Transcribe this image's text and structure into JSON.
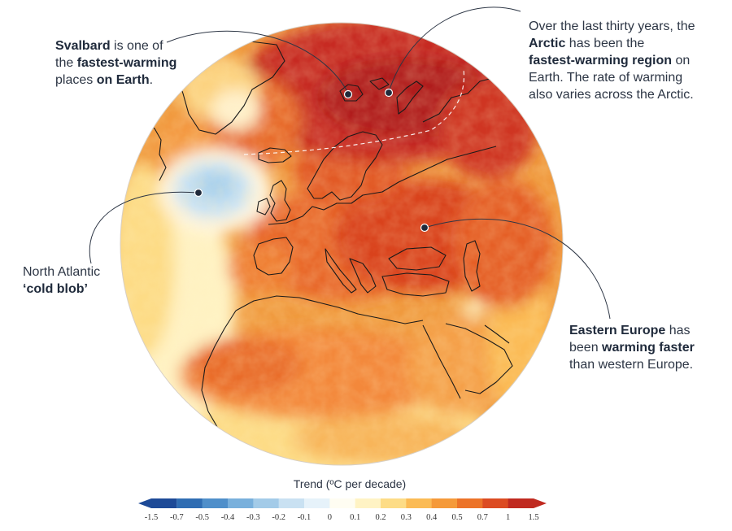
{
  "annotations": {
    "svalbard": {
      "lines": [
        [
          {
            "t": "Svalbard",
            "b": true
          },
          {
            "t": " is one of",
            "b": false
          }
        ],
        [
          {
            "t": "the ",
            "b": false
          },
          {
            "t": "fastest-warming",
            "b": true
          }
        ],
        [
          {
            "t": "places ",
            "b": false
          },
          {
            "t": "on Earth",
            "b": true
          },
          {
            "t": ".",
            "b": false
          }
        ]
      ]
    },
    "arctic": {
      "lines": [
        [
          {
            "t": "Over the last thirty years, the",
            "b": false
          }
        ],
        [
          {
            "t": "Arctic",
            "b": true
          },
          {
            "t": " has been the",
            "b": false
          }
        ],
        [
          {
            "t": "fastest-warming region",
            "b": true
          },
          {
            "t": " on",
            "b": false
          }
        ],
        [
          {
            "t": "Earth. The rate of warming",
            "b": false
          }
        ],
        [
          {
            "t": "also varies across the Arctic.",
            "b": false
          }
        ]
      ]
    },
    "cold_blob": {
      "lines": [
        [
          {
            "t": "North Atlantic",
            "b": false
          }
        ],
        [
          {
            "t": "‘cold blob’",
            "b": true
          }
        ]
      ]
    },
    "eastern_europe": {
      "lines": [
        [
          {
            "t": "Eastern Europe",
            "b": true
          },
          {
            "t": " has",
            "b": false
          }
        ],
        [
          {
            "t": "been ",
            "b": false
          },
          {
            "t": "warming faster",
            "b": true
          }
        ],
        [
          {
            "t": "than western Europe.",
            "b": false
          }
        ]
      ]
    }
  },
  "legend": {
    "title": "Trend (ºC per decade)",
    "ticks": [
      "-1.5",
      "-0.7",
      "-0.5",
      "-0.4",
      "-0.3",
      "-0.2",
      "-0.1",
      "0",
      "0.1",
      "0.2",
      "0.3",
      "0.4",
      "0.5",
      "0.7",
      "1",
      "1.5"
    ],
    "colors": [
      "#1d4a97",
      "#2f6db3",
      "#4f8fca",
      "#79b0dc",
      "#a3cbe8",
      "#c9e1f2",
      "#e6f2fa",
      "#fffdf2",
      "#fff3c4",
      "#fddc86",
      "#fbbb55",
      "#f59a3a",
      "#ec7328",
      "#dc4b22",
      "#c02a20"
    ]
  },
  "colors": {
    "deep_red": "#b8201f",
    "red": "#d9431f",
    "orange_red": "#e86a28",
    "orange": "#f4963a",
    "light_orange": "#fbbb55",
    "yellow": "#fddc86",
    "pale": "#fff3c4",
    "cold_blue": "#bcdaf0",
    "coastline": "#1a1a1a",
    "leader_line": "#2d3645"
  }
}
